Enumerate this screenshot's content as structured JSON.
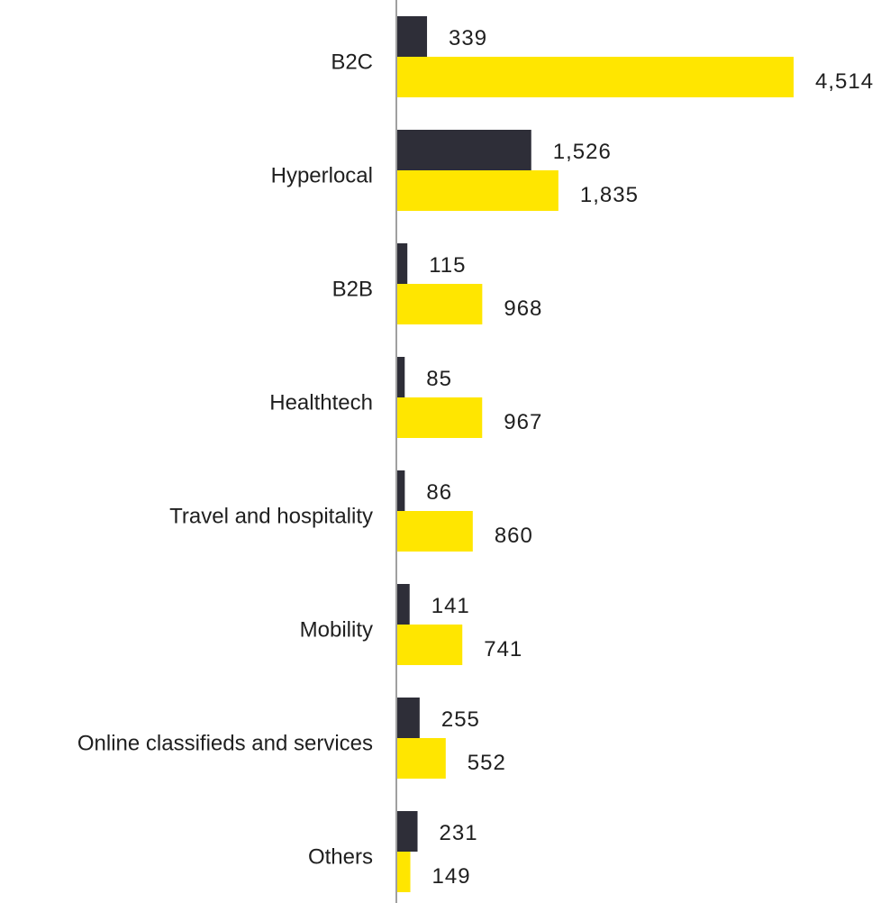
{
  "chart_data": {
    "type": "bar",
    "orientation": "horizontal",
    "title": "",
    "xlabel": "",
    "ylabel": "",
    "categories": [
      "B2C",
      "Hyperlocal",
      "B2B",
      "Healthtech",
      "Travel and hospitality",
      "Mobility",
      "Online classifieds and services",
      "Others"
    ],
    "series": [
      {
        "color": "#2e2e38",
        "values": [
          339,
          1526,
          115,
          85,
          86,
          141,
          255,
          231
        ],
        "value_labels": [
          "339",
          "1,526",
          "115",
          "85",
          "86",
          "141",
          "255",
          "231"
        ]
      },
      {
        "color": "#ffe600",
        "values": [
          4514,
          1835,
          968,
          967,
          860,
          741,
          552,
          149
        ],
        "value_labels": [
          "4,514",
          "1,835",
          "968",
          "967",
          "860",
          "741",
          "552",
          "149"
        ]
      }
    ],
    "xlim": [
      0,
      4514
    ],
    "grid": false,
    "legend": "none",
    "axis_color": "#808080"
  }
}
